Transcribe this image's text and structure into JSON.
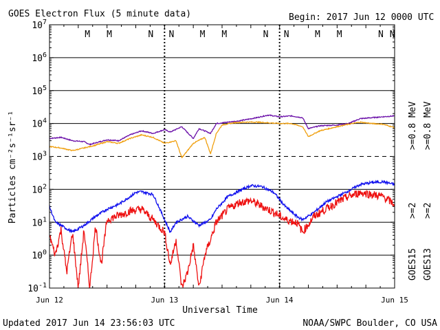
{
  "header": {
    "title": "GOES Electron Flux (5 minute data)",
    "begin": "Begin: 2017 Jun 12 0000 UTC"
  },
  "footer": {
    "updated": "Updated 2017 Jun 14 23:56:03 UTC",
    "credit": "NOAA/SWPC Boulder, CO USA"
  },
  "colors": {
    "goes15_2mev": "#1010ee",
    "goes13_2mev": "#ee1010",
    "goes15_08mev": "#6a0fa8",
    "goes13_08mev": "#f0a010",
    "grid": "#000000"
  },
  "chart_data": {
    "type": "line",
    "title": "GOES Electron Flux (5 minute data)",
    "xlabel": "Universal Time",
    "ylabel": "Particles cm⁻²s⁻¹sr⁻¹",
    "ylog": true,
    "ylim": [
      0.1,
      10000000
    ],
    "x_ticks": [
      "Jun 12",
      "Jun 13",
      "Jun 14",
      "Jun 15"
    ],
    "y_ticks": [
      {
        "base": "10",
        "exp": "-1"
      },
      {
        "base": "10",
        "exp": "0"
      },
      {
        "base": "10",
        "exp": "1"
      },
      {
        "base": "10",
        "exp": "2"
      },
      {
        "base": "10",
        "exp": "3"
      },
      {
        "base": "10",
        "exp": "4"
      },
      {
        "base": "10",
        "exp": "5"
      },
      {
        "base": "10",
        "exp": "6"
      },
      {
        "base": "10",
        "exp": "7"
      }
    ],
    "mn_markers": [
      {
        "label": "M",
        "day": 0.33,
        "sat": "GOES13"
      },
      {
        "label": "M",
        "day": 0.52,
        "sat": "GOES15"
      },
      {
        "label": "N",
        "day": 0.88,
        "sat": "GOES13"
      },
      {
        "label": "N",
        "day": 1.06,
        "sat": "GOES15"
      },
      {
        "label": "M",
        "day": 1.33,
        "sat": "GOES13"
      },
      {
        "label": "M",
        "day": 1.52,
        "sat": "GOES15"
      },
      {
        "label": "N",
        "day": 1.88,
        "sat": "GOES13"
      },
      {
        "label": "N",
        "day": 2.06,
        "sat": "GOES15"
      },
      {
        "label": "M",
        "day": 2.33,
        "sat": "GOES13"
      },
      {
        "label": "M",
        "day": 2.52,
        "sat": "GOES15"
      },
      {
        "label": "N",
        "day": 2.88,
        "sat": "GOES13"
      },
      {
        "label": "N",
        "day": 2.98,
        "sat": "GOES15"
      }
    ],
    "legend": {
      "line1": ">=2",
      "line1b": ">=0.8 MeV",
      "line2": ">=2",
      "line2b": ">=0.8 MeV",
      "sat_a": "GOES15",
      "sat_b": "GOES13"
    },
    "series": [
      {
        "name": "GOES15 >=0.8 MeV",
        "color": "#6a0fa8",
        "points": [
          [
            0.0,
            3500
          ],
          [
            0.1,
            3800
          ],
          [
            0.2,
            3000
          ],
          [
            0.3,
            2800
          ],
          [
            0.35,
            2300
          ],
          [
            0.5,
            3200
          ],
          [
            0.6,
            3000
          ],
          [
            0.7,
            4500
          ],
          [
            0.8,
            6000
          ],
          [
            0.9,
            5000
          ],
          [
            1.0,
            6500
          ],
          [
            1.05,
            5500
          ],
          [
            1.15,
            8000
          ],
          [
            1.25,
            3500
          ],
          [
            1.3,
            7000
          ],
          [
            1.4,
            5000
          ],
          [
            1.45,
            10000
          ],
          [
            1.55,
            11000
          ],
          [
            1.65,
            12000
          ],
          [
            1.8,
            15000
          ],
          [
            1.9,
            18000
          ],
          [
            2.0,
            16000
          ],
          [
            2.1,
            17000
          ],
          [
            2.2,
            15000
          ],
          [
            2.25,
            7000
          ],
          [
            2.35,
            8500
          ],
          [
            2.5,
            9000
          ],
          [
            2.6,
            10000
          ],
          [
            2.7,
            14000
          ],
          [
            2.8,
            15000
          ],
          [
            2.9,
            16000
          ],
          [
            3.0,
            17000
          ]
        ]
      },
      {
        "name": "GOES13 >=0.8 MeV",
        "color": "#f0a010",
        "points": [
          [
            0.0,
            2000
          ],
          [
            0.1,
            1800
          ],
          [
            0.2,
            1500
          ],
          [
            0.3,
            1800
          ],
          [
            0.4,
            2200
          ],
          [
            0.5,
            2800
          ],
          [
            0.6,
            2500
          ],
          [
            0.7,
            3500
          ],
          [
            0.8,
            4500
          ],
          [
            0.9,
            3800
          ],
          [
            1.0,
            2500
          ],
          [
            1.1,
            3000
          ],
          [
            1.15,
            900
          ],
          [
            1.25,
            2500
          ],
          [
            1.35,
            3800
          ],
          [
            1.4,
            1200
          ],
          [
            1.45,
            5000
          ],
          [
            1.5,
            9000
          ],
          [
            1.6,
            10500
          ],
          [
            1.7,
            11000
          ],
          [
            1.8,
            11000
          ],
          [
            1.9,
            10500
          ],
          [
            2.0,
            10000
          ],
          [
            2.1,
            10000
          ],
          [
            2.2,
            8000
          ],
          [
            2.25,
            4000
          ],
          [
            2.35,
            6000
          ],
          [
            2.5,
            8000
          ],
          [
            2.6,
            9500
          ],
          [
            2.7,
            11000
          ],
          [
            2.8,
            10000
          ],
          [
            2.9,
            9500
          ],
          [
            3.0,
            7500
          ]
        ]
      },
      {
        "name": "GOES15 >=2 MeV",
        "color": "#1010ee",
        "points": [
          [
            0.0,
            30
          ],
          [
            0.05,
            10
          ],
          [
            0.1,
            8
          ],
          [
            0.2,
            5
          ],
          [
            0.3,
            8
          ],
          [
            0.4,
            15
          ],
          [
            0.5,
            25
          ],
          [
            0.6,
            35
          ],
          [
            0.7,
            60
          ],
          [
            0.75,
            80
          ],
          [
            0.8,
            85
          ],
          [
            0.9,
            70
          ],
          [
            0.95,
            30
          ],
          [
            1.0,
            12
          ],
          [
            1.05,
            5
          ],
          [
            1.1,
            10
          ],
          [
            1.2,
            15
          ],
          [
            1.3,
            8
          ],
          [
            1.4,
            12
          ],
          [
            1.45,
            25
          ],
          [
            1.55,
            60
          ],
          [
            1.65,
            90
          ],
          [
            1.75,
            130
          ],
          [
            1.85,
            120
          ],
          [
            1.95,
            80
          ],
          [
            2.05,
            30
          ],
          [
            2.15,
            15
          ],
          [
            2.2,
            12
          ],
          [
            2.3,
            20
          ],
          [
            2.4,
            40
          ],
          [
            2.5,
            60
          ],
          [
            2.6,
            90
          ],
          [
            2.7,
            140
          ],
          [
            2.8,
            160
          ],
          [
            2.9,
            170
          ],
          [
            3.0,
            140
          ]
        ]
      },
      {
        "name": "GOES13 >=2 MeV",
        "color": "#ee1010",
        "points": [
          [
            0.0,
            4
          ],
          [
            0.05,
            1
          ],
          [
            0.1,
            6
          ],
          [
            0.15,
            0.3
          ],
          [
            0.2,
            5
          ],
          [
            0.25,
            0.1
          ],
          [
            0.3,
            6
          ],
          [
            0.35,
            0.1
          ],
          [
            0.4,
            8
          ],
          [
            0.45,
            0.5
          ],
          [
            0.5,
            12
          ],
          [
            0.6,
            16
          ],
          [
            0.7,
            22
          ],
          [
            0.8,
            25
          ],
          [
            0.9,
            12
          ],
          [
            1.0,
            5
          ],
          [
            1.05,
            0.5
          ],
          [
            1.1,
            3
          ],
          [
            1.15,
            0.1
          ],
          [
            1.2,
            0.3
          ],
          [
            1.25,
            2
          ],
          [
            1.3,
            0.1
          ],
          [
            1.35,
            1
          ],
          [
            1.4,
            3
          ],
          [
            1.45,
            10
          ],
          [
            1.55,
            25
          ],
          [
            1.65,
            40
          ],
          [
            1.75,
            45
          ],
          [
            1.85,
            30
          ],
          [
            1.95,
            20
          ],
          [
            2.05,
            12
          ],
          [
            2.15,
            10
          ],
          [
            2.2,
            5
          ],
          [
            2.3,
            15
          ],
          [
            2.4,
            25
          ],
          [
            2.5,
            40
          ],
          [
            2.6,
            60
          ],
          [
            2.7,
            80
          ],
          [
            2.8,
            70
          ],
          [
            2.9,
            60
          ],
          [
            3.0,
            35
          ]
        ]
      }
    ]
  }
}
